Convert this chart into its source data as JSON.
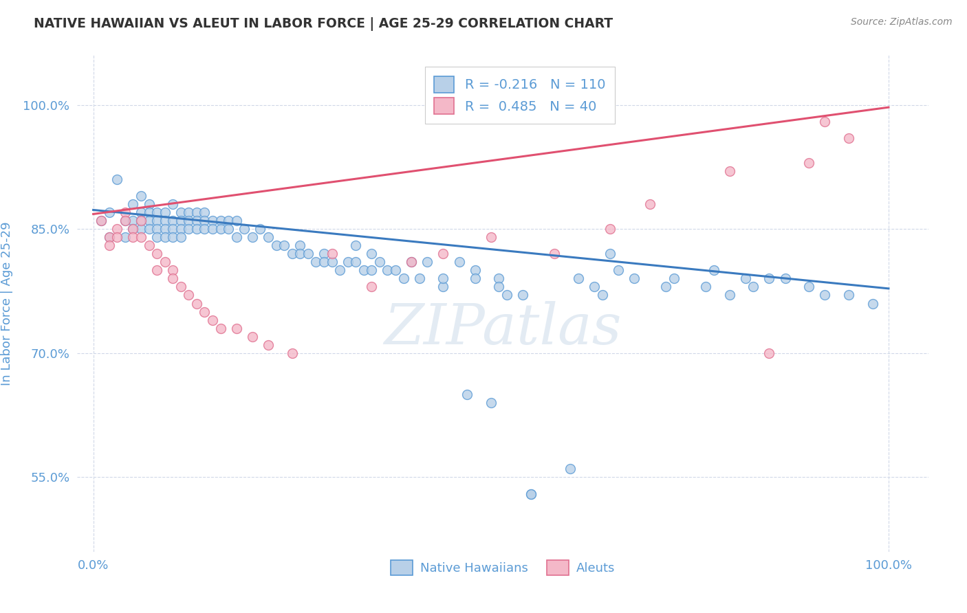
{
  "title": "NATIVE HAWAIIAN VS ALEUT IN LABOR FORCE | AGE 25-29 CORRELATION CHART",
  "source_text": "Source: ZipAtlas.com",
  "ylabel": "In Labor Force | Age 25-29",
  "xlim": [
    -0.02,
    1.05
  ],
  "ylim": [
    0.46,
    1.06
  ],
  "xtick_vals": [
    0.0,
    1.0
  ],
  "xtick_labels": [
    "0.0%",
    "100.0%"
  ],
  "ytick_vals": [
    0.55,
    0.7,
    0.85,
    1.0
  ],
  "ytick_labels": [
    "55.0%",
    "70.0%",
    "85.0%",
    "100.0%"
  ],
  "blue_R": -0.216,
  "blue_N": 110,
  "pink_R": 0.485,
  "pink_N": 40,
  "blue_face_color": "#b8d0e8",
  "blue_edge_color": "#5b9bd5",
  "pink_face_color": "#f4b8c8",
  "pink_edge_color": "#e07090",
  "blue_line_color": "#3a7abf",
  "pink_line_color": "#e05070",
  "blue_trend_x": [
    0.0,
    1.0
  ],
  "blue_trend_y": [
    0.873,
    0.778
  ],
  "pink_trend_x": [
    0.0,
    1.0
  ],
  "pink_trend_y": [
    0.868,
    0.997
  ],
  "blue_scatter": [
    [
      0.01,
      0.86
    ],
    [
      0.02,
      0.84
    ],
    [
      0.02,
      0.87
    ],
    [
      0.03,
      0.91
    ],
    [
      0.04,
      0.84
    ],
    [
      0.04,
      0.86
    ],
    [
      0.05,
      0.88
    ],
    [
      0.05,
      0.86
    ],
    [
      0.05,
      0.85
    ],
    [
      0.06,
      0.89
    ],
    [
      0.06,
      0.87
    ],
    [
      0.06,
      0.86
    ],
    [
      0.06,
      0.85
    ],
    [
      0.07,
      0.88
    ],
    [
      0.07,
      0.87
    ],
    [
      0.07,
      0.86
    ],
    [
      0.07,
      0.85
    ],
    [
      0.08,
      0.87
    ],
    [
      0.08,
      0.86
    ],
    [
      0.08,
      0.85
    ],
    [
      0.08,
      0.84
    ],
    [
      0.09,
      0.87
    ],
    [
      0.09,
      0.86
    ],
    [
      0.09,
      0.85
    ],
    [
      0.09,
      0.84
    ],
    [
      0.1,
      0.88
    ],
    [
      0.1,
      0.86
    ],
    [
      0.1,
      0.85
    ],
    [
      0.1,
      0.84
    ],
    [
      0.11,
      0.87
    ],
    [
      0.11,
      0.86
    ],
    [
      0.11,
      0.85
    ],
    [
      0.11,
      0.84
    ],
    [
      0.12,
      0.87
    ],
    [
      0.12,
      0.86
    ],
    [
      0.12,
      0.85
    ],
    [
      0.13,
      0.87
    ],
    [
      0.13,
      0.86
    ],
    [
      0.13,
      0.85
    ],
    [
      0.14,
      0.87
    ],
    [
      0.14,
      0.86
    ],
    [
      0.14,
      0.85
    ],
    [
      0.15,
      0.86
    ],
    [
      0.15,
      0.85
    ],
    [
      0.16,
      0.86
    ],
    [
      0.16,
      0.85
    ],
    [
      0.17,
      0.86
    ],
    [
      0.17,
      0.85
    ],
    [
      0.18,
      0.86
    ],
    [
      0.18,
      0.84
    ],
    [
      0.19,
      0.85
    ],
    [
      0.2,
      0.84
    ],
    [
      0.21,
      0.85
    ],
    [
      0.22,
      0.84
    ],
    [
      0.23,
      0.83
    ],
    [
      0.24,
      0.83
    ],
    [
      0.25,
      0.82
    ],
    [
      0.26,
      0.83
    ],
    [
      0.26,
      0.82
    ],
    [
      0.27,
      0.82
    ],
    [
      0.28,
      0.81
    ],
    [
      0.29,
      0.82
    ],
    [
      0.29,
      0.81
    ],
    [
      0.3,
      0.81
    ],
    [
      0.31,
      0.8
    ],
    [
      0.32,
      0.81
    ],
    [
      0.33,
      0.83
    ],
    [
      0.33,
      0.81
    ],
    [
      0.34,
      0.8
    ],
    [
      0.35,
      0.82
    ],
    [
      0.35,
      0.8
    ],
    [
      0.36,
      0.81
    ],
    [
      0.37,
      0.8
    ],
    [
      0.38,
      0.8
    ],
    [
      0.39,
      0.79
    ],
    [
      0.4,
      0.81
    ],
    [
      0.41,
      0.79
    ],
    [
      0.42,
      0.81
    ],
    [
      0.44,
      0.78
    ],
    [
      0.44,
      0.79
    ],
    [
      0.46,
      0.81
    ],
    [
      0.47,
      0.65
    ],
    [
      0.48,
      0.8
    ],
    [
      0.48,
      0.79
    ],
    [
      0.5,
      0.64
    ],
    [
      0.51,
      0.79
    ],
    [
      0.51,
      0.78
    ],
    [
      0.52,
      0.77
    ],
    [
      0.54,
      0.77
    ],
    [
      0.55,
      0.53
    ],
    [
      0.55,
      0.53
    ],
    [
      0.6,
      0.56
    ],
    [
      0.61,
      0.79
    ],
    [
      0.63,
      0.78
    ],
    [
      0.64,
      0.77
    ],
    [
      0.65,
      0.82
    ],
    [
      0.66,
      0.8
    ],
    [
      0.68,
      0.79
    ],
    [
      0.72,
      0.78
    ],
    [
      0.73,
      0.79
    ],
    [
      0.77,
      0.78
    ],
    [
      0.78,
      0.8
    ],
    [
      0.8,
      0.77
    ],
    [
      0.82,
      0.79
    ],
    [
      0.83,
      0.78
    ],
    [
      0.85,
      0.79
    ],
    [
      0.87,
      0.79
    ],
    [
      0.9,
      0.78
    ],
    [
      0.92,
      0.77
    ],
    [
      0.95,
      0.77
    ],
    [
      0.98,
      0.76
    ]
  ],
  "pink_scatter": [
    [
      0.01,
      0.86
    ],
    [
      0.02,
      0.84
    ],
    [
      0.02,
      0.83
    ],
    [
      0.03,
      0.85
    ],
    [
      0.03,
      0.84
    ],
    [
      0.04,
      0.87
    ],
    [
      0.04,
      0.86
    ],
    [
      0.05,
      0.85
    ],
    [
      0.05,
      0.84
    ],
    [
      0.06,
      0.86
    ],
    [
      0.06,
      0.84
    ],
    [
      0.07,
      0.83
    ],
    [
      0.08,
      0.82
    ],
    [
      0.08,
      0.8
    ],
    [
      0.09,
      0.81
    ],
    [
      0.1,
      0.8
    ],
    [
      0.1,
      0.79
    ],
    [
      0.11,
      0.78
    ],
    [
      0.12,
      0.77
    ],
    [
      0.13,
      0.76
    ],
    [
      0.14,
      0.75
    ],
    [
      0.15,
      0.74
    ],
    [
      0.16,
      0.73
    ],
    [
      0.18,
      0.73
    ],
    [
      0.2,
      0.72
    ],
    [
      0.22,
      0.71
    ],
    [
      0.25,
      0.7
    ],
    [
      0.3,
      0.82
    ],
    [
      0.35,
      0.78
    ],
    [
      0.4,
      0.81
    ],
    [
      0.44,
      0.82
    ],
    [
      0.5,
      0.84
    ],
    [
      0.58,
      0.82
    ],
    [
      0.65,
      0.85
    ],
    [
      0.7,
      0.88
    ],
    [
      0.8,
      0.92
    ],
    [
      0.85,
      0.7
    ],
    [
      0.9,
      0.93
    ],
    [
      0.92,
      0.98
    ],
    [
      0.95,
      0.96
    ]
  ],
  "watermark_text": "ZIPatlas",
  "background_color": "#ffffff",
  "grid_color": "#d0d8e8",
  "title_color": "#333333",
  "axis_label_color": "#5b9bd5",
  "tick_label_color": "#5b9bd5"
}
